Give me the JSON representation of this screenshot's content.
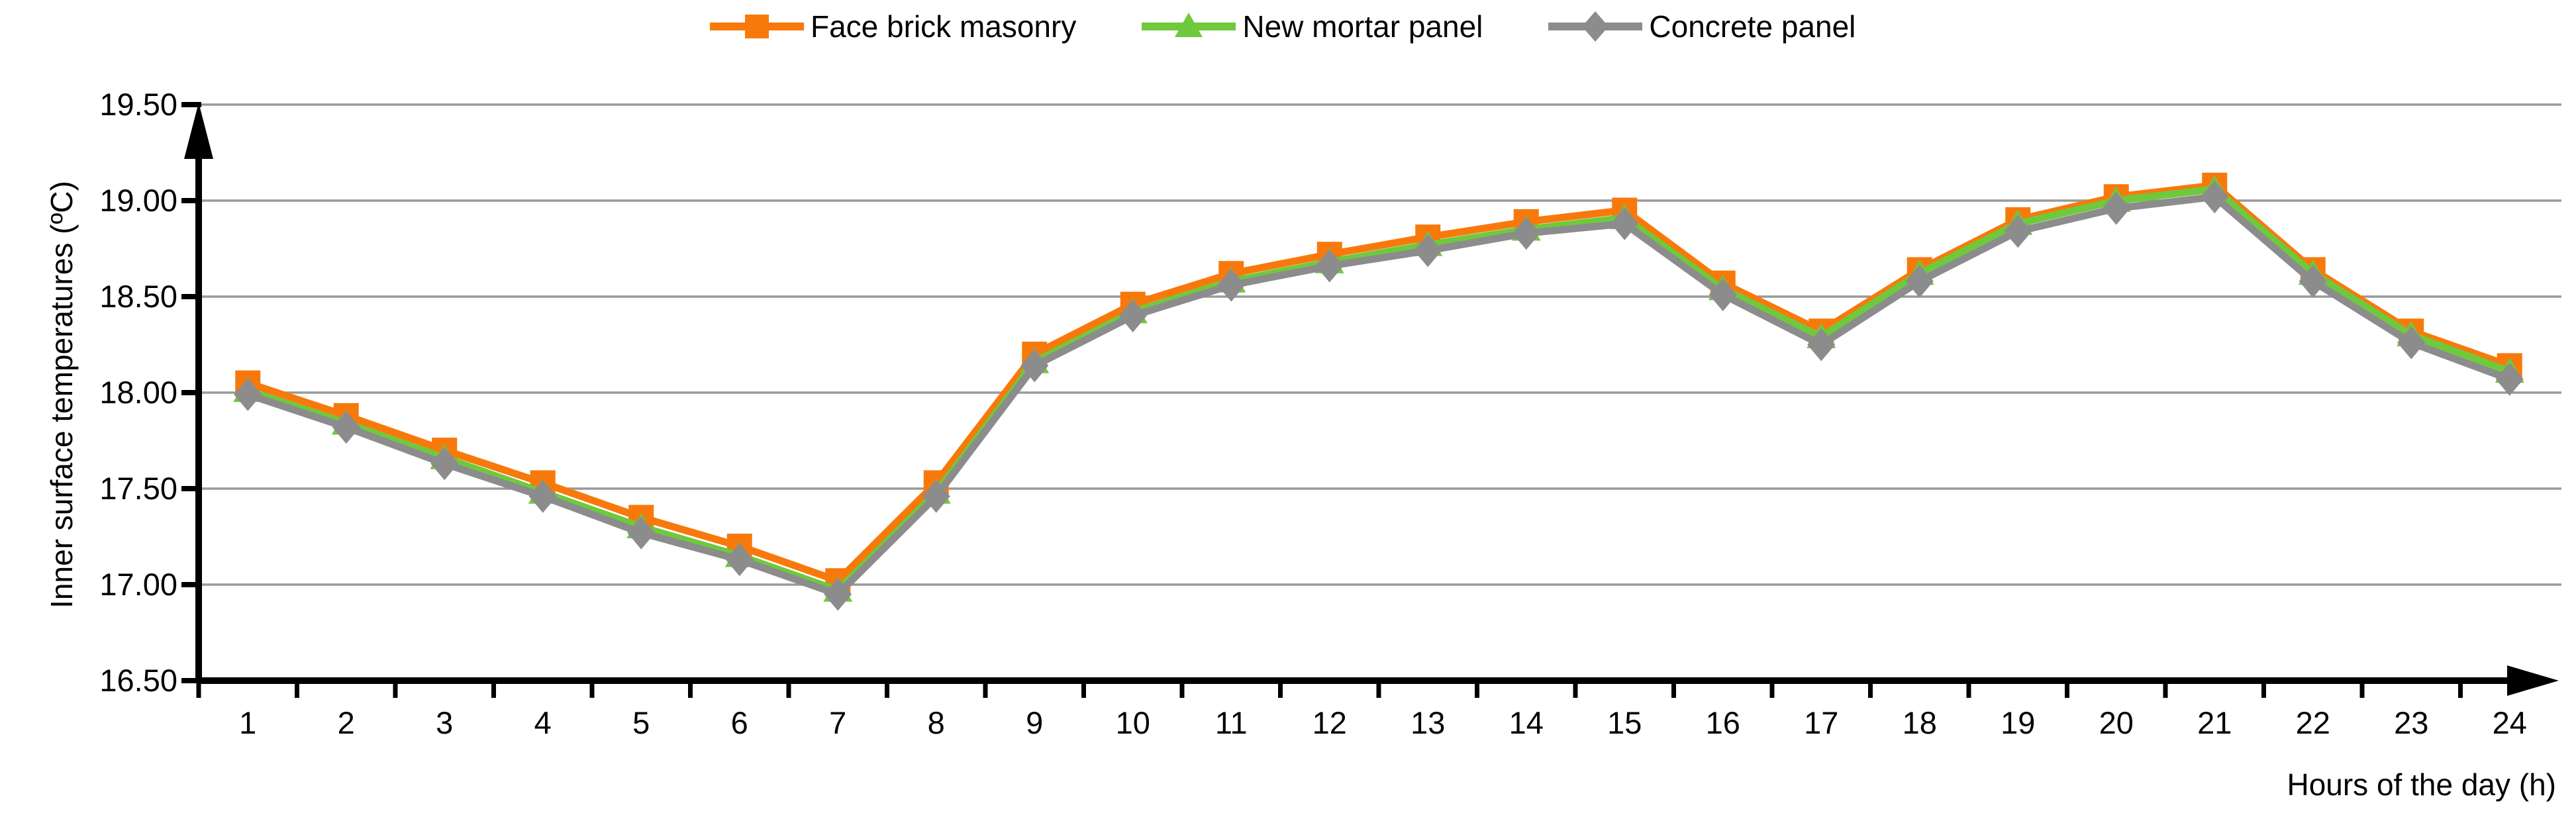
{
  "chart_data": {
    "type": "line",
    "title": "",
    "xlabel": "Hours of the day (h)",
    "ylabel": "Inner surface temperatures (ºC)",
    "x": [
      1,
      2,
      3,
      4,
      5,
      6,
      7,
      8,
      9,
      10,
      11,
      12,
      13,
      14,
      15,
      16,
      17,
      18,
      19,
      20,
      21,
      22,
      23,
      24
    ],
    "ylim": [
      16.5,
      19.5
    ],
    "ytick_step": 0.5,
    "ytick_decimals": 2,
    "grid": true,
    "legend_position": "top-center",
    "colors": {
      "axis": "#000000",
      "gridline": "#9A9A9A",
      "background": "#FFFFFF",
      "text": "#000000"
    },
    "series": [
      {
        "name": "Face brick masonry",
        "marker": "square",
        "color": "#F8790B",
        "values": [
          18.05,
          17.88,
          17.7,
          17.53,
          17.35,
          17.2,
          17.02,
          17.53,
          18.2,
          18.46,
          18.62,
          18.72,
          18.81,
          18.89,
          18.95,
          18.57,
          18.32,
          18.64,
          18.9,
          19.02,
          19.08,
          18.64,
          18.32,
          18.14
        ]
      },
      {
        "name": "New mortar panel",
        "marker": "triangle",
        "color": "#6FC93C",
        "values": [
          18.01,
          17.84,
          17.66,
          17.48,
          17.3,
          17.15,
          16.97,
          17.48,
          18.16,
          18.42,
          18.58,
          18.68,
          18.77,
          18.85,
          18.91,
          18.54,
          18.29,
          18.62,
          18.88,
          19.0,
          19.06,
          18.62,
          18.3,
          18.11
        ]
      },
      {
        "name": "Concrete panel",
        "marker": "diamond",
        "color": "#8C8C8C",
        "values": [
          17.99,
          17.82,
          17.63,
          17.46,
          17.27,
          17.13,
          16.95,
          17.46,
          18.14,
          18.4,
          18.56,
          18.66,
          18.74,
          18.83,
          18.88,
          18.51,
          18.25,
          18.58,
          18.84,
          18.96,
          19.02,
          18.58,
          18.26,
          18.07
        ]
      }
    ]
  }
}
